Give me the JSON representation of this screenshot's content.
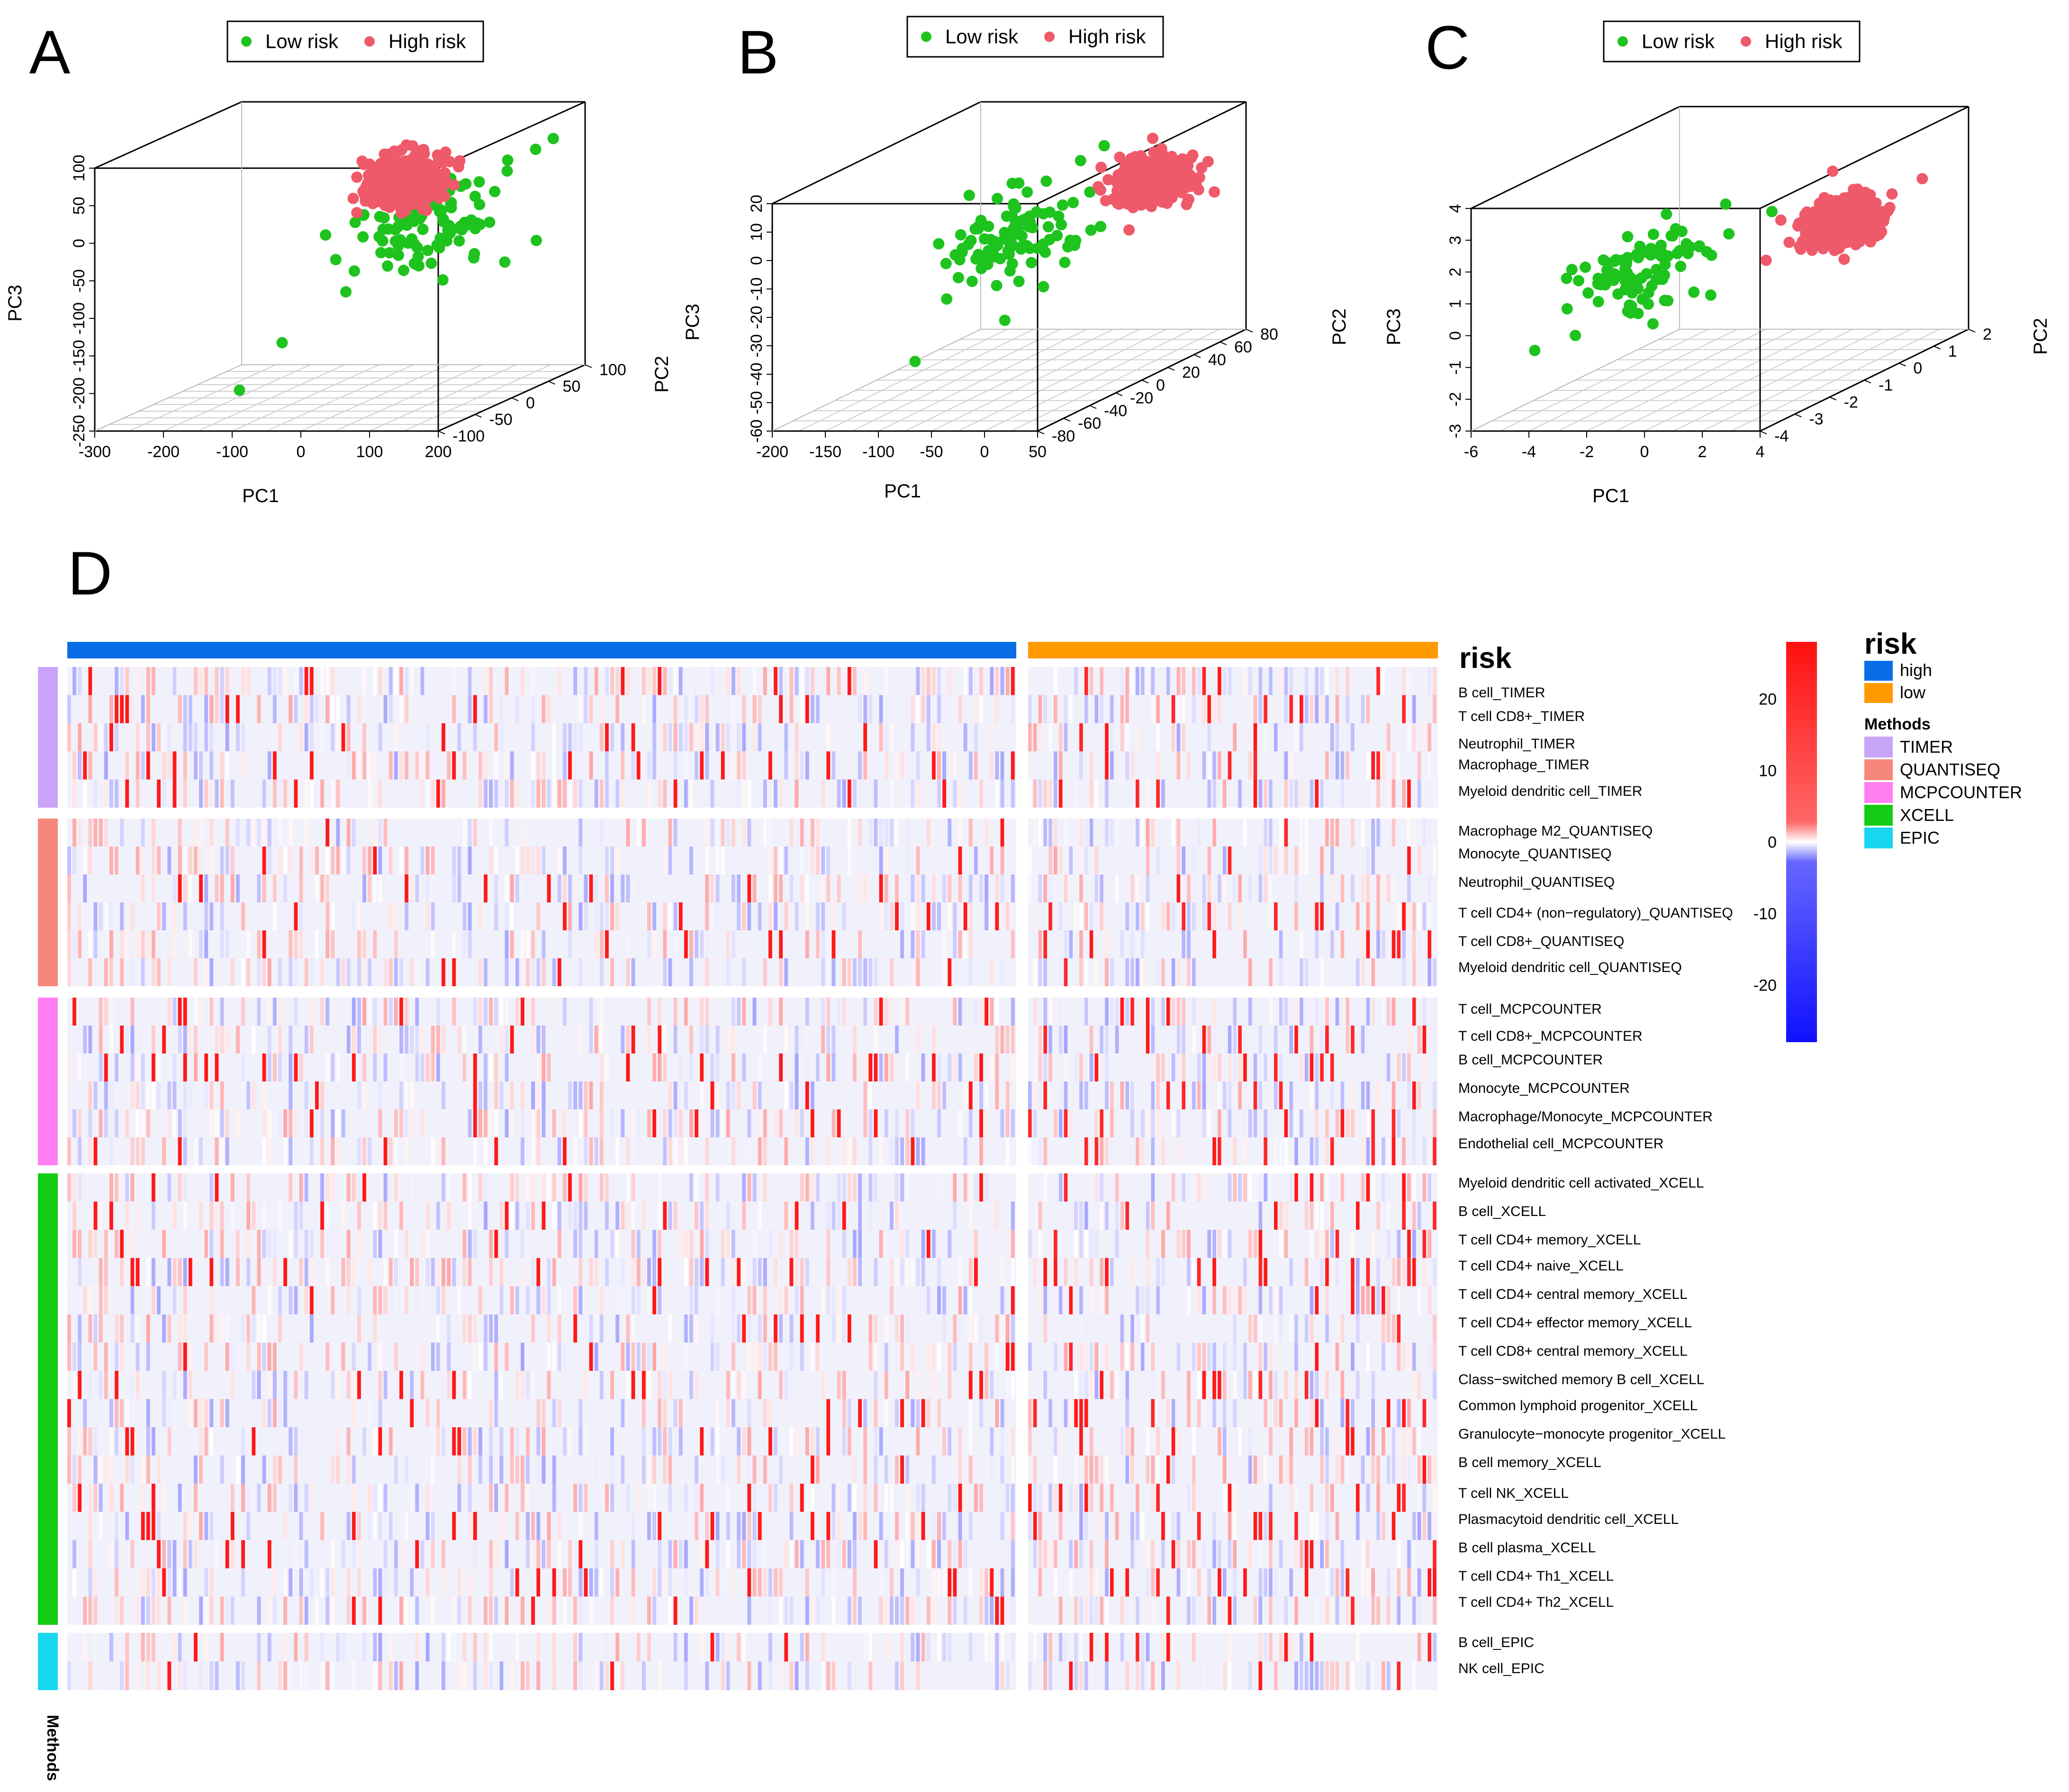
{
  "panels": [
    {
      "letter": "A",
      "legend": [
        "Low risk",
        "High risk"
      ],
      "xlabel": "PC1",
      "ylabel": "PC3",
      "zlabel": "PC2",
      "x_ticks": [
        "-300",
        "-200",
        "-100",
        "0",
        "100",
        "200"
      ],
      "y_ticks": [
        "-250",
        "-200",
        "-150",
        "-100",
        "-50",
        "0",
        "50",
        "100"
      ],
      "z_ticks": [
        "-100",
        "-50",
        "0",
        "50",
        "100"
      ]
    },
    {
      "letter": "B",
      "legend": [
        "Low risk",
        "High risk"
      ],
      "xlabel": "PC1",
      "ylabel": "PC3",
      "zlabel": "PC2",
      "x_ticks": [
        "-200",
        "-150",
        "-100",
        "-50",
        "0",
        "50"
      ],
      "y_ticks": [
        "-60",
        "-50",
        "-40",
        "-30",
        "-20",
        "-10",
        "0",
        "10",
        "20"
      ],
      "z_ticks": [
        "-80",
        "-60",
        "-40",
        "-20",
        "0",
        "20",
        "40",
        "60",
        "80"
      ]
    },
    {
      "letter": "C",
      "legend": [
        "Low risk",
        "High risk"
      ],
      "xlabel": "PC1",
      "ylabel": "PC3",
      "zlabel": "PC2",
      "x_ticks": [
        "-6",
        "-4",
        "-2",
        "0",
        "2",
        "4"
      ],
      "y_ticks": [
        "-3",
        "-2",
        "-1",
        "0",
        "1",
        "2",
        "3",
        "4"
      ],
      "z_ticks": [
        "-4",
        "-3",
        "-2",
        "-1",
        "0",
        "1",
        "2"
      ]
    }
  ],
  "heatmap": {
    "letter": "D",
    "risk_title": "risk",
    "methods_title": "Methods",
    "methods_axis_label": "Methods",
    "risk_groups": [
      {
        "label": "high",
        "color": "#0a6de8"
      },
      {
        "label": "low",
        "color": "#ff9900"
      }
    ],
    "methods": [
      {
        "label": "TIMER",
        "color": "#c7a4f8"
      },
      {
        "label": "QUANTISEQ",
        "color": "#f6877b"
      },
      {
        "label": "MCPCOUNTER",
        "color": "#ff7ff2"
      },
      {
        "label": "XCELL",
        "color": "#13cc13"
      },
      {
        "label": "EPIC",
        "color": "#18d6ef"
      }
    ],
    "colorbar": {
      "ticks": [
        "20",
        "10",
        "0",
        "-10",
        "-20"
      ],
      "low_color": "#1010ff",
      "mid_color": "#ffffff",
      "high_color": "#ff1010"
    },
    "rows": [
      {
        "label": "B cell_TIMER",
        "method": 0
      },
      {
        "label": "T cell CD8+_TIMER",
        "method": 0
      },
      {
        "label": "Neutrophil_TIMER",
        "method": 0
      },
      {
        "label": "Macrophage_TIMER",
        "method": 0
      },
      {
        "label": "Myeloid dendritic cell_TIMER",
        "method": 0
      },
      {
        "label": "Macrophage M2_QUANTISEQ",
        "method": 1
      },
      {
        "label": "Monocyte_QUANTISEQ",
        "method": 1
      },
      {
        "label": "Neutrophil_QUANTISEQ",
        "method": 1
      },
      {
        "label": "T cell CD4+ (non−regulatory)_QUANTISEQ",
        "method": 1
      },
      {
        "label": "T cell CD8+_QUANTISEQ",
        "method": 1
      },
      {
        "label": "Myeloid dendritic cell_QUANTISEQ",
        "method": 1
      },
      {
        "label": "T cell_MCPCOUNTER",
        "method": 2
      },
      {
        "label": "T cell CD8+_MCPCOUNTER",
        "method": 2
      },
      {
        "label": "B cell_MCPCOUNTER",
        "method": 2
      },
      {
        "label": "Monocyte_MCPCOUNTER",
        "method": 2
      },
      {
        "label": "Macrophage/Monocyte_MCPCOUNTER",
        "method": 2
      },
      {
        "label": "Endothelial cell_MCPCOUNTER",
        "method": 2
      },
      {
        "label": "Myeloid dendritic cell activated_XCELL",
        "method": 3
      },
      {
        "label": "B cell_XCELL",
        "method": 3
      },
      {
        "label": "T cell CD4+ memory_XCELL",
        "method": 3
      },
      {
        "label": "T cell CD4+ naive_XCELL",
        "method": 3
      },
      {
        "label": "T cell CD4+ central memory_XCELL",
        "method": 3
      },
      {
        "label": "T cell CD4+ effector memory_XCELL",
        "method": 3
      },
      {
        "label": "T cell CD8+ central memory_XCELL",
        "method": 3
      },
      {
        "label": "Class−switched memory B cell_XCELL",
        "method": 3
      },
      {
        "label": "Common lymphoid progenitor_XCELL",
        "method": 3
      },
      {
        "label": "Granulocyte−monocyte progenitor_XCELL",
        "method": 3
      },
      {
        "label": "B cell memory_XCELL",
        "method": 3
      },
      {
        "label": "T cell NK_XCELL",
        "method": 3
      },
      {
        "label": "Plasmacytoid dendritic cell_XCELL",
        "method": 3
      },
      {
        "label": "B cell plasma_XCELL",
        "method": 3
      },
      {
        "label": "T cell CD4+ Th1_XCELL",
        "method": 3
      },
      {
        "label": "T cell CD4+ Th2_XCELL",
        "method": 3
      },
      {
        "label": "B cell_EPIC",
        "method": 4
      },
      {
        "label": "NK cell_EPIC",
        "method": 4
      }
    ]
  },
  "chart_data": [
    {
      "type": "scatter",
      "title": "A",
      "axes_3d": true,
      "xlabel": "PC1",
      "ylabel": "PC3",
      "zlabel": "PC2",
      "xlim": [
        -300,
        200
      ],
      "ylim": [
        -250,
        100
      ],
      "zlim": [
        -100,
        100
      ],
      "series": [
        {
          "name": "Low risk",
          "color": "#1ec31e",
          "points": [
            [
              130,
              40,
              60
            ],
            [
              160,
              50,
              70
            ],
            [
              110,
              20,
              40
            ],
            [
              90,
              0,
              20
            ],
            [
              60,
              -30,
              10
            ],
            [
              30,
              -70,
              -10
            ],
            [
              -20,
              -100,
              -20
            ],
            [
              -70,
              -150,
              -60
            ],
            [
              -100,
              -200,
              -90
            ],
            [
              175,
              60,
              80
            ],
            [
              140,
              30,
              50
            ],
            [
              80,
              -10,
              30
            ]
          ]
        },
        {
          "name": "High risk",
          "color": "#ef5a6a",
          "points": [
            [
              20,
              40,
              10
            ],
            [
              40,
              50,
              20
            ],
            [
              0,
              30,
              0
            ],
            [
              60,
              60,
              30
            ],
            [
              -20,
              20,
              -10
            ],
            [
              80,
              40,
              40
            ],
            [
              30,
              10,
              0
            ],
            [
              50,
              20,
              15
            ]
          ]
        }
      ]
    },
    {
      "type": "scatter",
      "title": "B",
      "axes_3d": true,
      "xlabel": "PC1",
      "ylabel": "PC3",
      "zlabel": "PC2",
      "xlim": [
        -200,
        50
      ],
      "ylim": [
        -60,
        20
      ],
      "zlim": [
        -80,
        80
      ],
      "series": [
        {
          "name": "Low risk",
          "color": "#1ec31e",
          "points": [
            [
              -40,
              10,
              0
            ],
            [
              -60,
              0,
              -10
            ],
            [
              -70,
              -10,
              -20
            ],
            [
              -20,
              15,
              10
            ],
            [
              -50,
              -20,
              -30
            ],
            [
              -80,
              5,
              -5
            ],
            [
              -30,
              -30,
              -40
            ],
            [
              -90,
              -40,
              -60
            ],
            [
              -10,
              18,
              20
            ]
          ]
        },
        {
          "name": "High risk",
          "color": "#ef5a6a",
          "points": [
            [
              0,
              10,
              40
            ],
            [
              10,
              5,
              50
            ],
            [
              -10,
              0,
              30
            ],
            [
              20,
              -10,
              60
            ],
            [
              5,
              15,
              45
            ],
            [
              15,
              -5,
              55
            ],
            [
              -5,
              -15,
              35
            ]
          ]
        }
      ]
    },
    {
      "type": "scatter",
      "title": "C",
      "axes_3d": true,
      "xlabel": "PC1",
      "ylabel": "PC3",
      "zlabel": "PC2",
      "xlim": [
        -6,
        4
      ],
      "ylim": [
        -3,
        4
      ],
      "zlim": [
        -4,
        2
      ],
      "series": [
        {
          "name": "Low risk",
          "color": "#1ec31e",
          "points": [
            [
              -3,
              1,
              -1
            ],
            [
              -4,
              0,
              -2
            ],
            [
              -2,
              2,
              0
            ],
            [
              -5,
              -1,
              -3
            ],
            [
              -3.5,
              0.5,
              -1.5
            ],
            [
              -2.5,
              -0.5,
              -0.5
            ],
            [
              -1,
              1.5,
              0.5
            ],
            [
              -4.5,
              1,
              -2.5
            ]
          ]
        },
        {
          "name": "High risk",
          "color": "#ef5a6a",
          "points": [
            [
              1,
              1,
              0
            ],
            [
              2,
              1.5,
              1
            ],
            [
              0,
              0.5,
              -0.5
            ],
            [
              3,
              2,
              1.5
            ],
            [
              1.5,
              0,
              0.5
            ],
            [
              2.5,
              1,
              -0.5
            ],
            [
              0.5,
              2.5,
              1
            ]
          ]
        }
      ]
    },
    {
      "type": "heatmap",
      "title": "D",
      "columns_groups": [
        "high",
        "low"
      ],
      "color_range": [
        -28,
        28
      ],
      "colorbar_ticks": [
        20,
        10,
        0,
        -10,
        -20
      ]
    }
  ]
}
